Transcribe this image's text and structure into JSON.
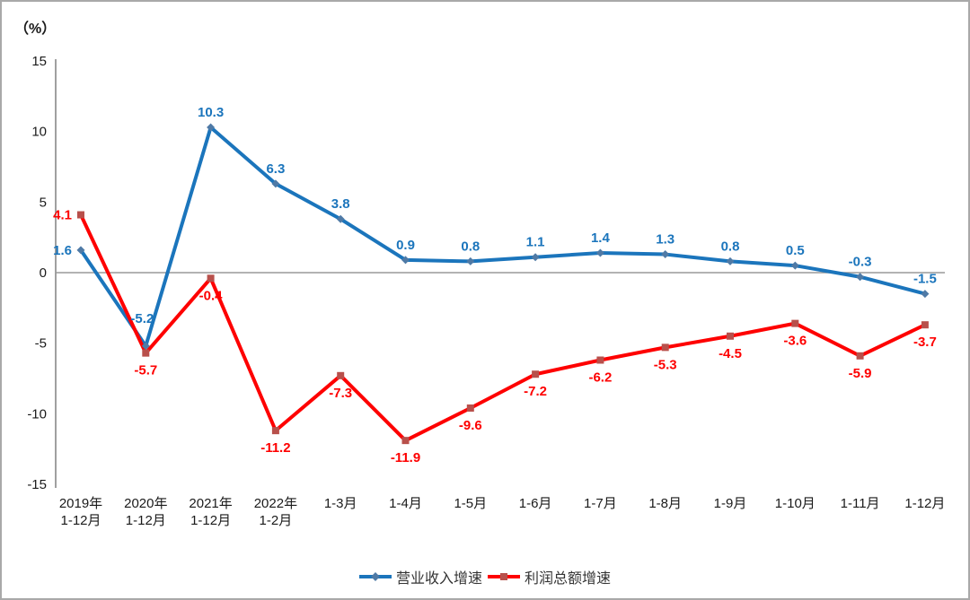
{
  "chart_data": {
    "type": "line",
    "title": "",
    "ylabel": "（%）",
    "xlabel": "",
    "ylim": [
      -15,
      15
    ],
    "yticks": [
      15,
      10,
      5,
      0,
      -5,
      -10,
      -15
    ],
    "grid": false,
    "legend_position": "bottom",
    "categories": [
      [
        "2019年",
        "1-12月"
      ],
      [
        "2020年",
        "1-12月"
      ],
      [
        "2021年",
        "1-12月"
      ],
      [
        "2022年",
        "1-2月"
      ],
      [
        "1-3月"
      ],
      [
        "1-4月"
      ],
      [
        "1-5月"
      ],
      [
        "1-6月"
      ],
      [
        "1-7月"
      ],
      [
        "1-8月"
      ],
      [
        "1-9月"
      ],
      [
        "1-10月"
      ],
      [
        "1-11月"
      ],
      [
        "1-12月"
      ]
    ],
    "series": [
      {
        "name": "营业收入增速",
        "color": "#1B75BC",
        "marker": "diamond",
        "marker_color": "#4F7AA6",
        "values": [
          1.6,
          -5.2,
          10.3,
          6.3,
          3.8,
          0.9,
          0.8,
          1.1,
          1.4,
          1.3,
          0.8,
          0.5,
          -0.3,
          -1.5
        ]
      },
      {
        "name": "利润总额增速",
        "color": "#FE0000",
        "marker": "square",
        "marker_color": "#B8504B",
        "values": [
          4.1,
          -5.7,
          -0.4,
          -11.2,
          -7.3,
          -11.9,
          -9.6,
          -7.2,
          -6.2,
          -5.3,
          -4.5,
          -3.6,
          -5.9,
          -3.7
        ]
      }
    ],
    "axis_color": "#808080",
    "zero_line_color": "#9a9a9a",
    "tick_text_color": "#1a1a1a"
  }
}
